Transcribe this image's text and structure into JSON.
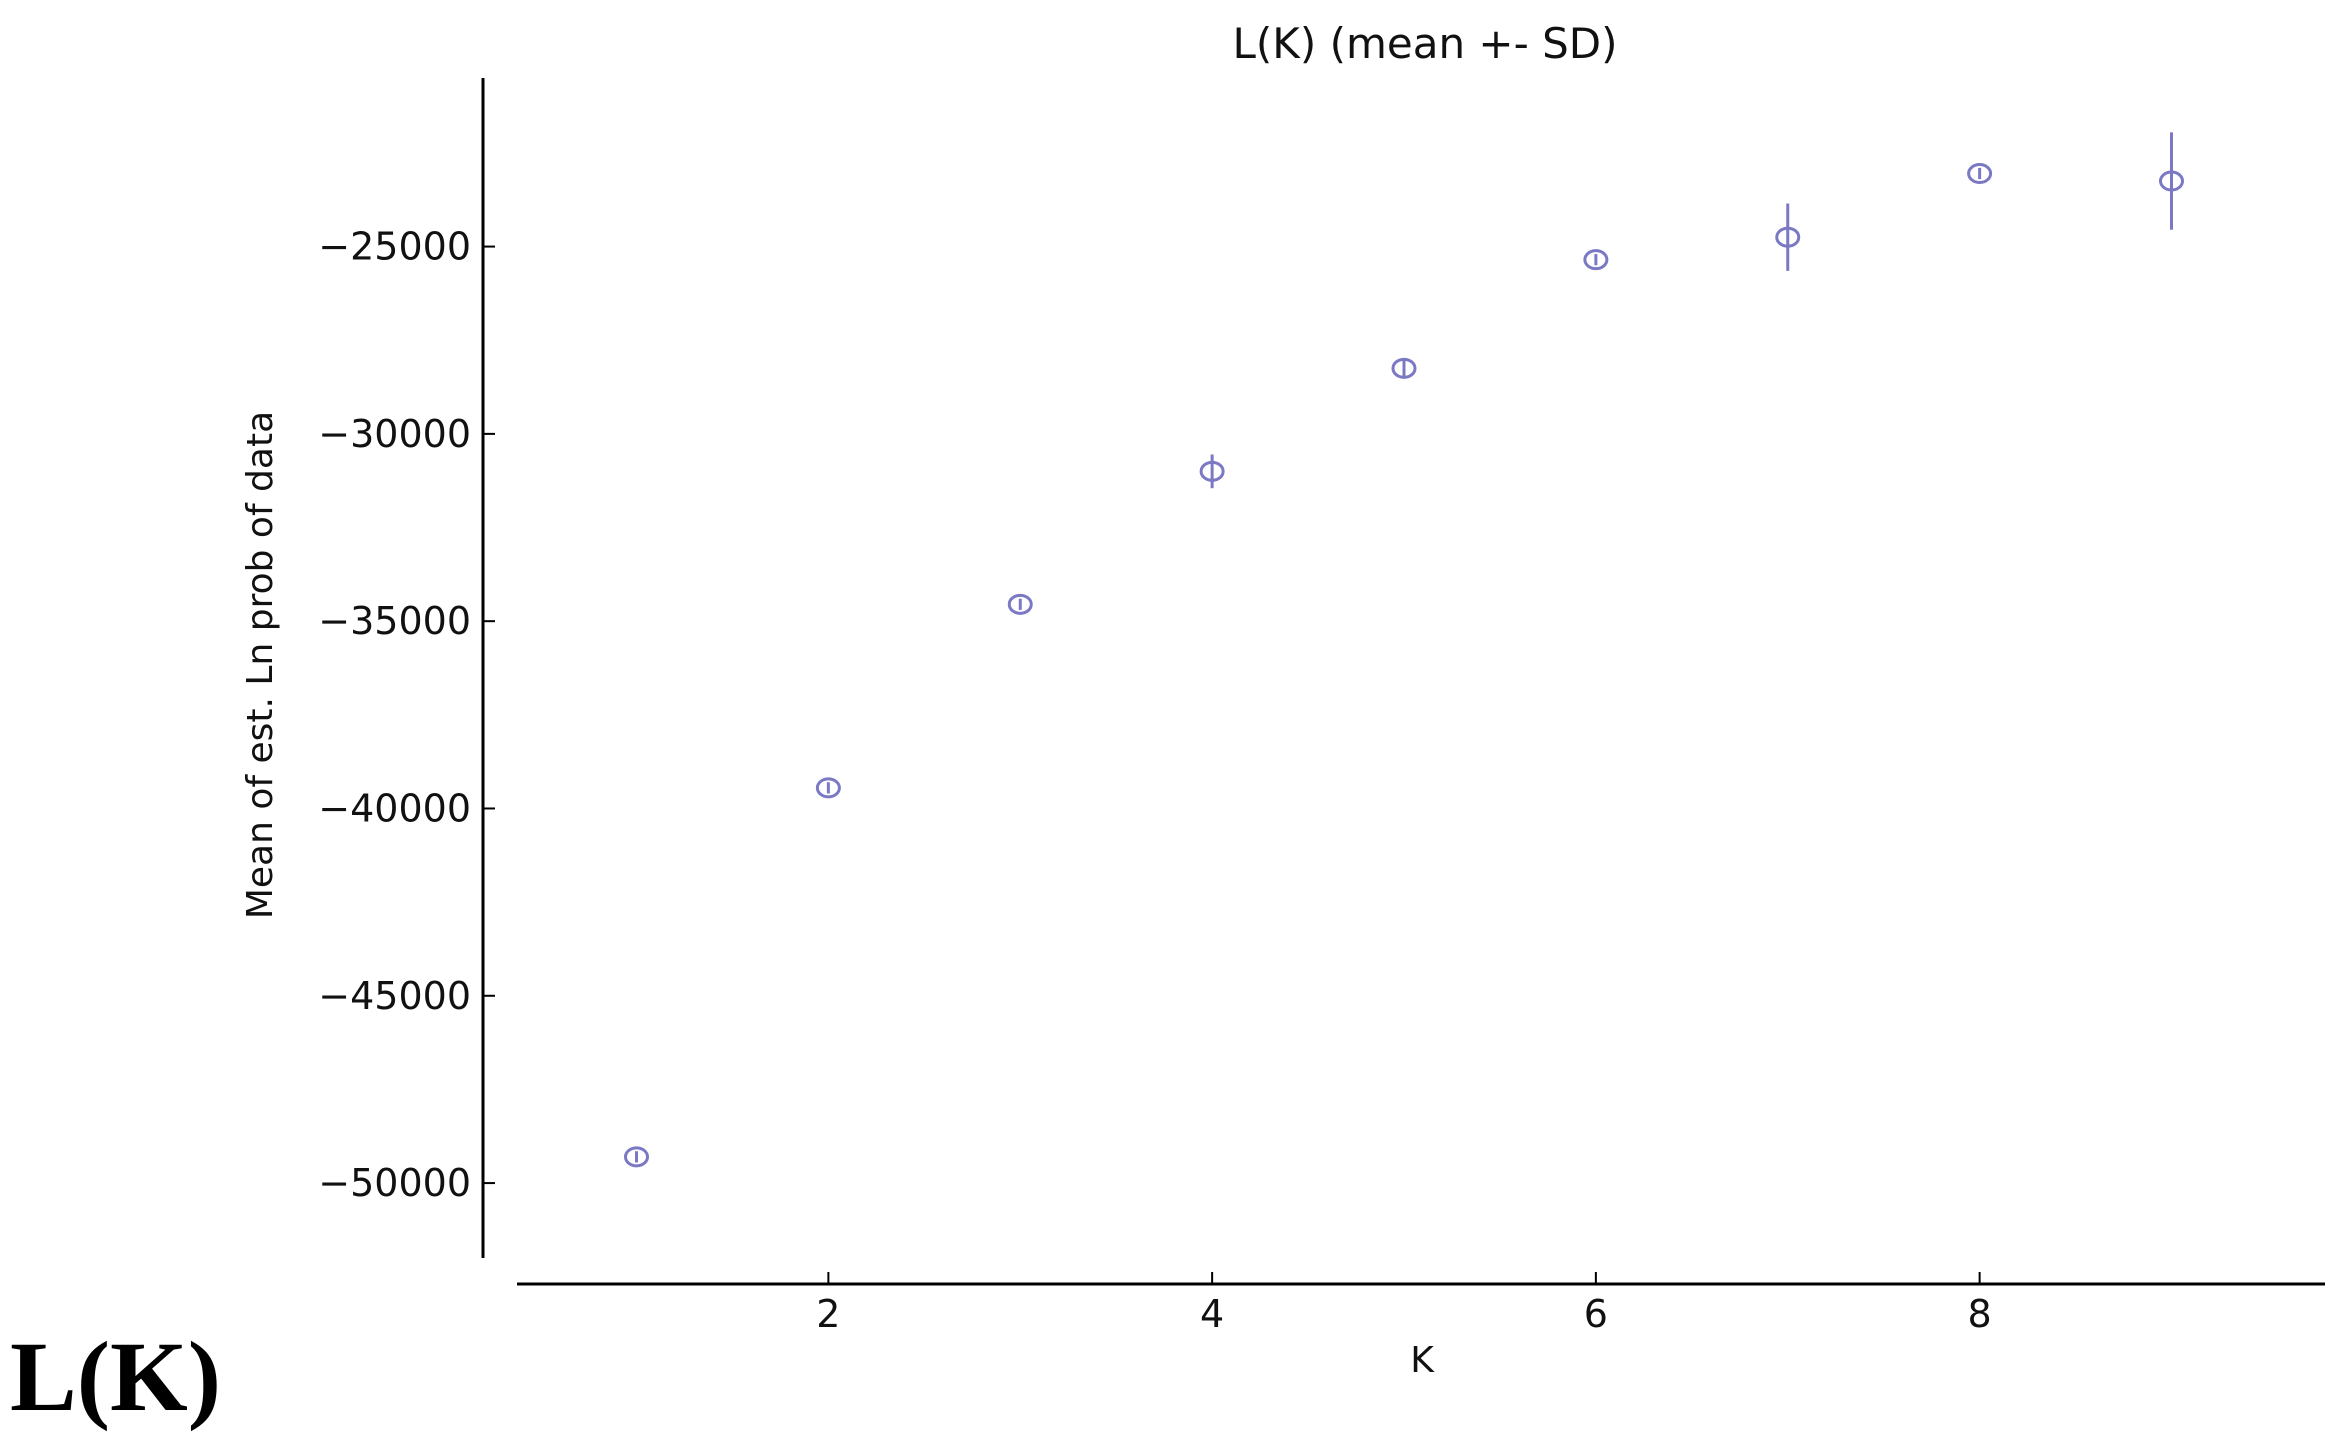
{
  "chart_data": {
    "type": "scatter",
    "title": "L(K) (mean +- SD)",
    "xlabel": "K",
    "ylabel": "Mean of est. Ln prob of data",
    "panel_label": "L(K)",
    "xlim": [
      0.2,
      9.8
    ],
    "ylim": [
      -52000,
      -20500
    ],
    "xticks": [
      2,
      4,
      6,
      8
    ],
    "yticks": [
      -50000,
      -45000,
      -40000,
      -35000,
      -30000,
      -25000
    ],
    "grid": false,
    "legend": "none",
    "marker_color": "#7b78c4",
    "points": [
      {
        "x": 1,
        "y": -49300,
        "sd": 150
      },
      {
        "x": 2,
        "y": -39450,
        "sd": 150
      },
      {
        "x": 3,
        "y": -34550,
        "sd": 150
      },
      {
        "x": 4,
        "y": -31000,
        "sd": 450
      },
      {
        "x": 5,
        "y": -28250,
        "sd": 250
      },
      {
        "x": 6,
        "y": -25350,
        "sd": 150
      },
      {
        "x": 7,
        "y": -24750,
        "sd": 900
      },
      {
        "x": 8,
        "y": -23050,
        "sd": 150
      },
      {
        "x": 9,
        "y": -23250,
        "sd": 1300
      }
    ]
  }
}
